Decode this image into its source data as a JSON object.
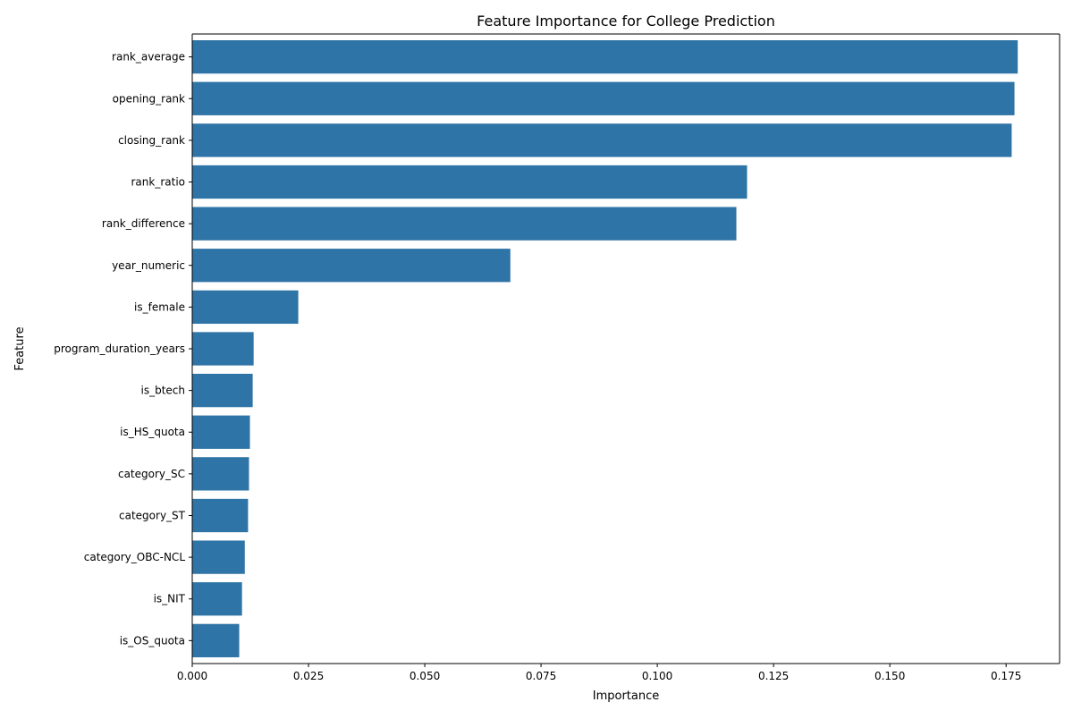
{
  "chart_data": {
    "type": "bar",
    "orientation": "horizontal",
    "title": "Feature Importance for College Prediction",
    "xlabel": "Importance",
    "ylabel": "Feature",
    "categories": [
      "rank_average",
      "opening_rank",
      "closing_rank",
      "rank_ratio",
      "rank_difference",
      "year_numeric",
      "is_female",
      "program_duration_years",
      "is_btech",
      "is_HS_quota",
      "category_SC",
      "category_ST",
      "category_OBC-NCL",
      "is_NIT",
      "is_OS_quota"
    ],
    "values": [
      0.1775,
      0.1768,
      0.1762,
      0.1193,
      0.117,
      0.0684,
      0.0228,
      0.0132,
      0.013,
      0.0124,
      0.0122,
      0.012,
      0.0113,
      0.0107,
      0.0101
    ],
    "xlim": [
      0,
      0.1865
    ],
    "xticks": [
      "0.000",
      "0.025",
      "0.050",
      "0.075",
      "0.100",
      "0.125",
      "0.150",
      "0.175"
    ],
    "bar_color": "#2e74a6",
    "grid": false,
    "legend": "none"
  }
}
